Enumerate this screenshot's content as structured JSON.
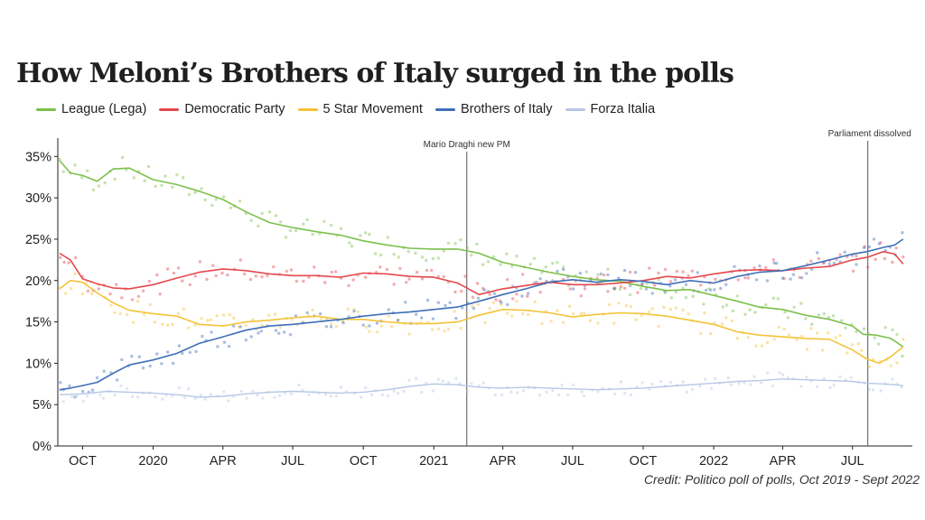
{
  "colors": {
    "league": "#7cc04b",
    "democratic": "#e5484d",
    "five_star": "#f3c338",
    "brothers": "#3f6fb8",
    "forza": "#b7c7e6"
  },
  "chart_data": {
    "type": "line",
    "title": "How Meloni’s Brothers of Italy surged in the polls",
    "credit": "Credit: Politico poll of polls, Oct 2019 - Sept 2022",
    "x_range": [
      "2019-09-01",
      "2022-09-10"
    ],
    "ylim": [
      0,
      37
    ],
    "y_ticks": [
      0,
      5,
      10,
      15,
      20,
      25,
      30,
      35
    ],
    "y_tick_labels": [
      "0%",
      "5%",
      "10%",
      "15%",
      "20%",
      "25%",
      "30%",
      "35%"
    ],
    "x_ticks": [
      {
        "date": "2019-10-01",
        "label": "OCT"
      },
      {
        "date": "2020-01-01",
        "label": "2020"
      },
      {
        "date": "2020-04-01",
        "label": "APR"
      },
      {
        "date": "2020-07-01",
        "label": "JUL"
      },
      {
        "date": "2020-10-01",
        "label": "OCT"
      },
      {
        "date": "2021-01-01",
        "label": "2021"
      },
      {
        "date": "2021-04-01",
        "label": "APR"
      },
      {
        "date": "2021-07-01",
        "label": "JUL"
      },
      {
        "date": "2021-10-01",
        "label": "OCT"
      },
      {
        "date": "2022-01-01",
        "label": "2022"
      },
      {
        "date": "2022-04-01",
        "label": "APR"
      },
      {
        "date": "2022-07-01",
        "label": "JUL"
      }
    ],
    "annotations": [
      {
        "date": "2021-02-13",
        "label": "Mario Draghi new PM"
      },
      {
        "date": "2022-07-21",
        "label": "Parliament dissolved"
      }
    ],
    "legend_position": "top-left",
    "grid": false,
    "series": [
      {
        "key": "league",
        "name": "League (Lega)",
        "color_key": "league",
        "points": [
          [
            "2019-09-01",
            34.5
          ],
          [
            "2019-09-15",
            33
          ],
          [
            "2019-10-01",
            32.7
          ],
          [
            "2019-10-20",
            32
          ],
          [
            "2019-11-10",
            33.5
          ],
          [
            "2019-12-01",
            33.6
          ],
          [
            "2020-01-01",
            32.2
          ],
          [
            "2020-02-01",
            31.6
          ],
          [
            "2020-03-01",
            30.8
          ],
          [
            "2020-04-01",
            29.8
          ],
          [
            "2020-05-01",
            28.3
          ],
          [
            "2020-06-01",
            27
          ],
          [
            "2020-07-01",
            26.4
          ],
          [
            "2020-08-01",
            25.9
          ],
          [
            "2020-09-01",
            25.5
          ],
          [
            "2020-10-01",
            24.8
          ],
          [
            "2020-11-01",
            24.3
          ],
          [
            "2020-12-01",
            23.9
          ],
          [
            "2021-01-01",
            23.8
          ],
          [
            "2021-02-01",
            23.8
          ],
          [
            "2021-03-01",
            23.3
          ],
          [
            "2021-04-01",
            22.2
          ],
          [
            "2021-05-01",
            21.6
          ],
          [
            "2021-06-01",
            21
          ],
          [
            "2021-07-01",
            20.5
          ],
          [
            "2021-08-01",
            20.1
          ],
          [
            "2021-09-01",
            19.9
          ],
          [
            "2021-10-01",
            19.3
          ],
          [
            "2021-11-01",
            18.8
          ],
          [
            "2021-12-01",
            18.9
          ],
          [
            "2022-01-01",
            18.2
          ],
          [
            "2022-02-01",
            17.5
          ],
          [
            "2022-03-01",
            16.8
          ],
          [
            "2022-04-01",
            16.5
          ],
          [
            "2022-05-01",
            15.8
          ],
          [
            "2022-06-01",
            15.3
          ],
          [
            "2022-07-01",
            14.5
          ],
          [
            "2022-07-15",
            13.5
          ],
          [
            "2022-08-01",
            13.4
          ],
          [
            "2022-08-20",
            13
          ],
          [
            "2022-09-05",
            12
          ]
        ]
      },
      {
        "key": "democratic",
        "name": "Democratic Party",
        "color_key": "democratic",
        "points": [
          [
            "2019-09-01",
            23.3
          ],
          [
            "2019-09-15",
            22.5
          ],
          [
            "2019-10-01",
            20.2
          ],
          [
            "2019-10-20",
            19.6
          ],
          [
            "2019-11-10",
            19.1
          ],
          [
            "2019-12-01",
            19
          ],
          [
            "2020-01-01",
            19.5
          ],
          [
            "2020-02-01",
            20.3
          ],
          [
            "2020-03-01",
            21
          ],
          [
            "2020-04-01",
            21.4
          ],
          [
            "2020-05-01",
            21.2
          ],
          [
            "2020-06-01",
            20.8
          ],
          [
            "2020-07-01",
            20.6
          ],
          [
            "2020-08-01",
            20.6
          ],
          [
            "2020-09-01",
            20.4
          ],
          [
            "2020-10-01",
            20.9
          ],
          [
            "2020-11-01",
            20.8
          ],
          [
            "2020-12-01",
            20.5
          ],
          [
            "2021-01-01",
            20.4
          ],
          [
            "2021-02-01",
            19.7
          ],
          [
            "2021-03-01",
            18.3
          ],
          [
            "2021-04-01",
            19
          ],
          [
            "2021-05-01",
            19.4
          ],
          [
            "2021-06-01",
            19.8
          ],
          [
            "2021-07-01",
            19.5
          ],
          [
            "2021-08-01",
            19.5
          ],
          [
            "2021-09-01",
            19.7
          ],
          [
            "2021-10-01",
            20
          ],
          [
            "2021-11-01",
            20.5
          ],
          [
            "2021-12-01",
            20.3
          ],
          [
            "2022-01-01",
            20.8
          ],
          [
            "2022-02-01",
            21.2
          ],
          [
            "2022-03-01",
            21.3
          ],
          [
            "2022-04-01",
            21.2
          ],
          [
            "2022-05-01",
            21.5
          ],
          [
            "2022-06-01",
            21.7
          ],
          [
            "2022-07-01",
            22.5
          ],
          [
            "2022-07-20",
            22.8
          ],
          [
            "2022-08-10",
            23.5
          ],
          [
            "2022-08-25",
            23.2
          ],
          [
            "2022-09-05",
            22
          ]
        ]
      },
      {
        "key": "five_star",
        "name": "5 Star Movement",
        "color_key": "five_star",
        "points": [
          [
            "2019-09-01",
            19
          ],
          [
            "2019-09-15",
            20
          ],
          [
            "2019-10-01",
            19.8
          ],
          [
            "2019-10-20",
            18.5
          ],
          [
            "2019-11-10",
            17.3
          ],
          [
            "2019-12-01",
            16.4
          ],
          [
            "2020-01-01",
            16
          ],
          [
            "2020-02-01",
            15.7
          ],
          [
            "2020-03-01",
            14.7
          ],
          [
            "2020-04-01",
            14.5
          ],
          [
            "2020-05-01",
            15
          ],
          [
            "2020-06-01",
            15.2
          ],
          [
            "2020-07-01",
            15.5
          ],
          [
            "2020-08-01",
            15.7
          ],
          [
            "2020-09-01",
            15.3
          ],
          [
            "2020-10-01",
            15.3
          ],
          [
            "2020-11-01",
            15
          ],
          [
            "2020-12-01",
            14.8
          ],
          [
            "2021-01-01",
            14.8
          ],
          [
            "2021-02-01",
            15
          ],
          [
            "2021-03-01",
            15.8
          ],
          [
            "2021-04-01",
            16.5
          ],
          [
            "2021-05-01",
            16.4
          ],
          [
            "2021-06-01",
            16.1
          ],
          [
            "2021-07-01",
            15.6
          ],
          [
            "2021-08-01",
            15.9
          ],
          [
            "2021-09-01",
            16.1
          ],
          [
            "2021-10-01",
            16
          ],
          [
            "2021-11-01",
            15.7
          ],
          [
            "2021-12-01",
            15.2
          ],
          [
            "2022-01-01",
            14.7
          ],
          [
            "2022-02-01",
            13.8
          ],
          [
            "2022-03-01",
            13.4
          ],
          [
            "2022-04-01",
            13.2
          ],
          [
            "2022-05-01",
            13
          ],
          [
            "2022-06-01",
            12.9
          ],
          [
            "2022-07-01",
            11.6
          ],
          [
            "2022-07-20",
            10.5
          ],
          [
            "2022-08-05",
            10
          ],
          [
            "2022-08-20",
            10.8
          ],
          [
            "2022-09-05",
            12
          ]
        ]
      },
      {
        "key": "brothers",
        "name": "Brothers of Italy",
        "color_key": "brothers",
        "points": [
          [
            "2019-09-01",
            6.8
          ],
          [
            "2019-09-15",
            7
          ],
          [
            "2019-10-01",
            7.3
          ],
          [
            "2019-10-20",
            7.7
          ],
          [
            "2019-11-10",
            8.8
          ],
          [
            "2019-12-01",
            9.8
          ],
          [
            "2020-01-01",
            10.4
          ],
          [
            "2020-02-01",
            11.2
          ],
          [
            "2020-03-01",
            12.4
          ],
          [
            "2020-04-01",
            13.2
          ],
          [
            "2020-05-01",
            14
          ],
          [
            "2020-06-01",
            14.5
          ],
          [
            "2020-07-01",
            14.7
          ],
          [
            "2020-08-01",
            15
          ],
          [
            "2020-09-01",
            15.3
          ],
          [
            "2020-10-01",
            15.7
          ],
          [
            "2020-11-01",
            16
          ],
          [
            "2020-12-01",
            16.2
          ],
          [
            "2021-01-01",
            16.5
          ],
          [
            "2021-02-01",
            16.8
          ],
          [
            "2021-03-01",
            17.5
          ],
          [
            "2021-04-01",
            18.3
          ],
          [
            "2021-05-01",
            19
          ],
          [
            "2021-06-01",
            19.8
          ],
          [
            "2021-07-01",
            20.1
          ],
          [
            "2021-08-01",
            19.8
          ],
          [
            "2021-09-01",
            20.1
          ],
          [
            "2021-10-01",
            19.9
          ],
          [
            "2021-11-01",
            19.5
          ],
          [
            "2021-12-01",
            20
          ],
          [
            "2022-01-01",
            19.7
          ],
          [
            "2022-02-01",
            20.5
          ],
          [
            "2022-03-01",
            21
          ],
          [
            "2022-04-01",
            21.2
          ],
          [
            "2022-05-01",
            21.8
          ],
          [
            "2022-06-01",
            22.5
          ],
          [
            "2022-07-01",
            23.2
          ],
          [
            "2022-07-20",
            23.5
          ],
          [
            "2022-08-10",
            24
          ],
          [
            "2022-08-25",
            24.3
          ],
          [
            "2022-09-05",
            25
          ]
        ]
      },
      {
        "key": "forza",
        "name": "Forza Italia",
        "color_key": "forza",
        "points": [
          [
            "2019-09-01",
            6.2
          ],
          [
            "2019-10-01",
            6.3
          ],
          [
            "2019-11-01",
            6.6
          ],
          [
            "2019-12-01",
            6.5
          ],
          [
            "2020-01-01",
            6.4
          ],
          [
            "2020-02-01",
            6.2
          ],
          [
            "2020-03-01",
            5.9
          ],
          [
            "2020-04-01",
            6
          ],
          [
            "2020-05-01",
            6.3
          ],
          [
            "2020-06-01",
            6.5
          ],
          [
            "2020-07-01",
            6.6
          ],
          [
            "2020-08-01",
            6.5
          ],
          [
            "2020-09-01",
            6.4
          ],
          [
            "2020-10-01",
            6.5
          ],
          [
            "2020-11-01",
            6.8
          ],
          [
            "2020-12-01",
            7.2
          ],
          [
            "2021-01-01",
            7.5
          ],
          [
            "2021-02-01",
            7.4
          ],
          [
            "2021-03-01",
            7.1
          ],
          [
            "2021-04-01",
            7
          ],
          [
            "2021-05-01",
            7.1
          ],
          [
            "2021-06-01",
            7
          ],
          [
            "2021-07-01",
            6.9
          ],
          [
            "2021-08-01",
            6.8
          ],
          [
            "2021-09-01",
            6.9
          ],
          [
            "2021-10-01",
            7
          ],
          [
            "2021-11-01",
            7.2
          ],
          [
            "2021-12-01",
            7.4
          ],
          [
            "2022-01-01",
            7.6
          ],
          [
            "2022-02-01",
            7.8
          ],
          [
            "2022-03-01",
            7.9
          ],
          [
            "2022-04-01",
            8.1
          ],
          [
            "2022-05-01",
            8
          ],
          [
            "2022-06-01",
            7.9
          ],
          [
            "2022-07-01",
            7.8
          ],
          [
            "2022-07-20",
            7.6
          ],
          [
            "2022-08-10",
            7.5
          ],
          [
            "2022-08-25",
            7.4
          ],
          [
            "2022-09-05",
            7.3
          ]
        ]
      }
    ]
  }
}
